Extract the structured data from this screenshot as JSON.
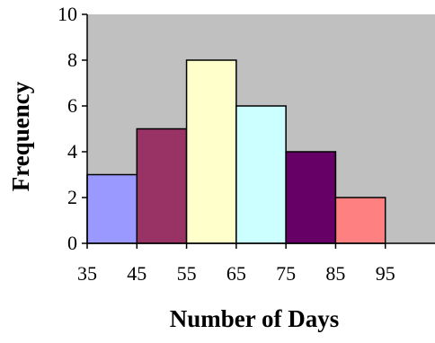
{
  "chart_data": {
    "type": "bar",
    "title": "",
    "xlabel": "Number of Days",
    "ylabel": "Frequency",
    "bin_edges": [
      35,
      45,
      55,
      65,
      75,
      85,
      95
    ],
    "x_ticks": [
      "35",
      "45",
      "55",
      "65",
      "75",
      "85",
      "95"
    ],
    "x_axis_max": 105,
    "categories": [
      "35-45",
      "45-55",
      "55-65",
      "65-75",
      "75-85",
      "85-95"
    ],
    "values": [
      3,
      5,
      8,
      6,
      4,
      2
    ],
    "ylim": [
      0,
      10
    ],
    "y_ticks": [
      "0",
      "2",
      "4",
      "6",
      "8",
      "10"
    ],
    "bar_colors": [
      "#9999ff",
      "#993366",
      "#ffffcc",
      "#ccffff",
      "#660066",
      "#ff8080"
    ],
    "plot_background": "#c0c0c0",
    "grid": false,
    "legend": "none"
  }
}
